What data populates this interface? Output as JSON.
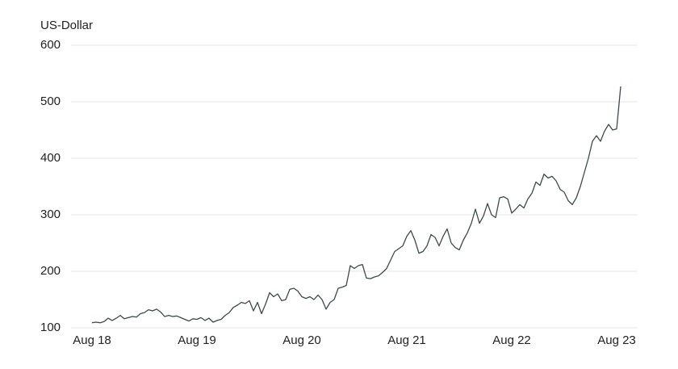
{
  "chart_data": {
    "type": "line",
    "y_label": "US-Dollar",
    "categories": [
      "Aug 18",
      null,
      null,
      null,
      null,
      null,
      null,
      null,
      null,
      null,
      null,
      null,
      null,
      null,
      null,
      null,
      null,
      null,
      null,
      null,
      null,
      null,
      null,
      null,
      null,
      null,
      "Aug 19",
      null,
      null,
      null,
      null,
      null,
      null,
      null,
      null,
      null,
      null,
      null,
      null,
      null,
      null,
      null,
      null,
      null,
      null,
      null,
      null,
      null,
      null,
      null,
      null,
      null,
      "Aug 20",
      null,
      null,
      null,
      null,
      null,
      null,
      null,
      null,
      null,
      null,
      null,
      null,
      null,
      null,
      null,
      null,
      null,
      null,
      null,
      null,
      null,
      null,
      null,
      null,
      null,
      "Aug 21",
      null,
      null,
      null,
      null,
      null,
      null,
      null,
      null,
      null,
      null,
      null,
      null,
      null,
      null,
      null,
      null,
      null,
      null,
      null,
      null,
      null,
      null,
      null,
      null,
      null,
      "Aug 22",
      null,
      null,
      null,
      null,
      null,
      null,
      null,
      null,
      null,
      null,
      null,
      null,
      null,
      null,
      null,
      null,
      null,
      null,
      null,
      null,
      null,
      null,
      null,
      null,
      null,
      "Aug 23",
      null
    ],
    "values": [
      109,
      110,
      109,
      111,
      117,
      113,
      117,
      122,
      116,
      118,
      120,
      119,
      125,
      127,
      132,
      130,
      133,
      128,
      120,
      122,
      120,
      121,
      118,
      115,
      112,
      116,
      115,
      118,
      113,
      117,
      110,
      113,
      115,
      122,
      127,
      136,
      140,
      145,
      143,
      148,
      130,
      145,
      125,
      142,
      162,
      155,
      160,
      148,
      150,
      168,
      170,
      165,
      155,
      152,
      155,
      150,
      158,
      150,
      133,
      145,
      150,
      170,
      172,
      175,
      210,
      205,
      210,
      212,
      188,
      187,
      190,
      192,
      198,
      205,
      220,
      235,
      240,
      245,
      262,
      272,
      255,
      232,
      235,
      245,
      265,
      260,
      245,
      262,
      275,
      250,
      242,
      238,
      255,
      268,
      285,
      310,
      285,
      298,
      320,
      300,
      295,
      330,
      332,
      328,
      303,
      310,
      318,
      312,
      328,
      338,
      358,
      352,
      372,
      365,
      368,
      360,
      345,
      340,
      325,
      318,
      330,
      350,
      375,
      400,
      430,
      440,
      430,
      448,
      460,
      450,
      452,
      527
    ],
    "color": "#3b4a4a",
    "ylim": [
      100,
      600
    ],
    "yticks": [
      100,
      200,
      300,
      400,
      500,
      600
    ],
    "grid": true
  }
}
